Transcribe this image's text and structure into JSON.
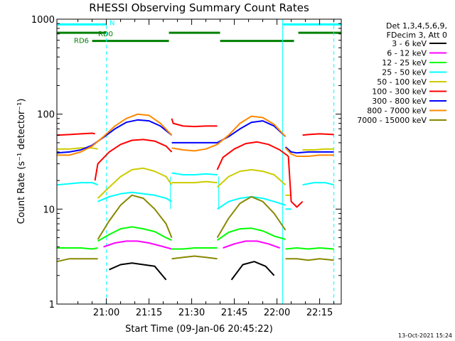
{
  "chart_data": {
    "type": "line",
    "title": "RHESSI Observing Summary Count Rates",
    "xlabel": "Start Time (09-Jan-06 20:45:22)",
    "ylabel": "Count Rate (s⁻¹ detector⁻¹)",
    "yscale": "log",
    "ylim": [
      1,
      1000
    ],
    "xlim_minutes": [
      -2.4,
      97.6
    ],
    "xtick_labels": [
      "21:00",
      "21:15",
      "21:30",
      "21:45",
      "22:00",
      "22:15"
    ],
    "xtick_minutes": [
      15,
      30,
      45,
      60,
      75,
      90
    ],
    "ytick_labels": [
      "1",
      "10",
      "100",
      "1000"
    ],
    "ytick_values": [
      1,
      10,
      100,
      1000
    ],
    "legend_header": [
      "Det 1,3,4,5,6,9,",
      "FDecim 3, Att 0"
    ],
    "legend_position": "right",
    "grid": false,
    "series": [
      {
        "name": "3 - 6 keV",
        "color": "#000000",
        "segments": [
          {
            "x": [
              16,
              20,
              24,
              28,
              32,
              36
            ],
            "y": [
              2.3,
              2.6,
              2.7,
              2.6,
              2.5,
              1.8
            ]
          },
          {
            "x": [
              59,
              63,
              67,
              71,
              74
            ],
            "y": [
              1.8,
              2.6,
              2.8,
              2.5,
              2.0
            ]
          }
        ]
      },
      {
        "name": "6 - 12 keV",
        "color": "#ff00ff",
        "segments": [
          {
            "x": [
              14,
              18,
              22,
              26,
              30,
              34,
              38
            ],
            "y": [
              4.0,
              4.4,
              4.6,
              4.6,
              4.4,
              4.1,
              3.8
            ]
          },
          {
            "x": [
              56,
              60,
              64,
              68,
              72,
              76
            ],
            "y": [
              3.9,
              4.3,
              4.6,
              4.6,
              4.3,
              3.9
            ]
          }
        ]
      },
      {
        "name": "12 - 25 keV",
        "color": "#00ff00",
        "segments": [
          {
            "x": [
              -2.4,
              2,
              6,
              10,
              12
            ],
            "y": [
              3.9,
              3.9,
              3.9,
              3.8,
              3.9
            ]
          },
          {
            "x": [
              12,
              16,
              20,
              24,
              28,
              32,
              36,
              38
            ],
            "y": [
              4.6,
              5.4,
              6.2,
              6.5,
              6.2,
              5.8,
              5.0,
              4.7
            ]
          },
          {
            "x": [
              38,
              42,
              46,
              50,
              54
            ],
            "y": [
              3.8,
              3.8,
              3.9,
              3.9,
              3.9
            ]
          },
          {
            "x": [
              54,
              58,
              62,
              66,
              70,
              74,
              78
            ],
            "y": [
              4.7,
              5.7,
              6.2,
              6.3,
              5.9,
              5.2,
              4.8
            ]
          },
          {
            "x": [
              78,
              82,
              86,
              90,
              95
            ],
            "y": [
              3.8,
              3.9,
              3.8,
              3.9,
              3.8
            ]
          }
        ]
      },
      {
        "name": "25 - 50 keV",
        "color": "#00ffff",
        "segments": [
          {
            "x": [
              -2.4,
              2,
              6,
              10,
              12
            ],
            "y": [
              18,
              18.5,
              19,
              19,
              18
            ]
          },
          {
            "x": [
              12,
              16,
              20,
              24,
              28,
              32,
              36,
              38
            ],
            "y": [
              12,
              13.5,
              14.5,
              15,
              14.5,
              14,
              13,
              12
            ]
          },
          {
            "x": [
              38,
              42,
              46,
              50,
              54
            ],
            "y": [
              24,
              23,
              23,
              23.5,
              23
            ]
          },
          {
            "x": [
              54,
              58,
              62,
              66,
              70,
              74,
              78
            ],
            "y": [
              10,
              12,
              13,
              13.5,
              13,
              12,
              11
            ]
          },
          {
            "x": [
              78,
              80
            ],
            "y": [
              10,
              10
            ]
          },
          {
            "x": [
              84,
              88,
              92,
              95
            ],
            "y": [
              18,
              19,
              19,
              18
            ]
          }
        ]
      },
      {
        "name": "50 - 100 keV",
        "color": "#cccc00",
        "segments": [
          {
            "x": [
              -2.4,
              2,
              6,
              10,
              12
            ],
            "y": [
              43,
              43,
              44,
              44,
              43
            ]
          },
          {
            "x": [
              12,
              16,
              20,
              24,
              28,
              32,
              36,
              38
            ],
            "y": [
              13,
              17,
              22,
              26,
              27,
              25,
              22,
              18
            ]
          },
          {
            "x": [
              38,
              42,
              46,
              50,
              54
            ],
            "y": [
              19,
              19,
              19,
              19.5,
              19
            ]
          },
          {
            "x": [
              54,
              58,
              62,
              66,
              70,
              74,
              78
            ],
            "y": [
              17,
              22,
              25,
              26,
              25,
              23,
              18
            ]
          },
          {
            "x": [
              78,
              80
            ],
            "y": [
              14,
              14
            ]
          },
          {
            "x": [
              84,
              88,
              92,
              95
            ],
            "y": [
              42,
              42,
              43,
              43
            ]
          }
        ]
      },
      {
        "name": "100 - 300 keV",
        "color": "#ff0000",
        "segments": [
          {
            "x": [
              -2.4,
              2,
              6,
              10,
              11
            ],
            "y": [
              60,
              61,
              62,
              63,
              62
            ]
          },
          {
            "x": [
              11,
              12,
              16,
              20,
              24,
              28,
              32,
              36,
              38
            ],
            "y": [
              20,
              30,
              40,
              48,
              53,
              54,
              52,
              46,
              40
            ]
          },
          {
            "x": [
              38,
              38.5,
              42,
              46,
              50,
              54
            ],
            "y": [
              90,
              80,
              75,
              74,
              75,
              75
            ]
          },
          {
            "x": [
              54,
              56,
              60,
              64,
              68,
              72,
              76,
              79
            ],
            "y": [
              26,
              35,
              43,
              49,
              51,
              48,
              42,
              36
            ]
          },
          {
            "x": [
              79,
              80,
              82,
              84
            ],
            "y": [
              36,
              12,
              10.5,
              12
            ]
          },
          {
            "x": [
              84,
              86,
              90,
              95
            ],
            "y": [
              60,
              61,
              62,
              61
            ]
          }
        ]
      },
      {
        "name": "300 - 800 keV",
        "color": "#0000ff",
        "segments": [
          {
            "x": [
              -2.4,
              2,
              6,
              10,
              14,
              18,
              22,
              26,
              30,
              34,
              38
            ],
            "y": [
              39,
              40,
              42,
              47,
              57,
              70,
              82,
              87,
              85,
              75,
              60
            ]
          },
          {
            "x": [
              38,
              42,
              46,
              50,
              54,
              58,
              62,
              66,
              70,
              74,
              78
            ],
            "y": [
              50,
              50,
              50,
              50,
              50,
              58,
              70,
              82,
              85,
              75,
              58
            ]
          },
          {
            "x": [
              78,
              80,
              82,
              86,
              90,
              95
            ],
            "y": [
              45,
              40,
              39,
              40,
              40,
              40
            ]
          }
        ]
      },
      {
        "name": "800 - 7000 keV",
        "color": "#ff8800",
        "segments": [
          {
            "x": [
              -2.4,
              2,
              6,
              10,
              14,
              18,
              22,
              26,
              30,
              34,
              38
            ],
            "y": [
              37,
              37,
              40,
              46,
              58,
              75,
              90,
              100,
              97,
              80,
              60
            ]
          },
          {
            "x": [
              38,
              42,
              46,
              50,
              54,
              58,
              62,
              66,
              70,
              74,
              78
            ],
            "y": [
              44,
              42,
              41,
              43,
              48,
              60,
              80,
              95,
              92,
              78,
              58
            ]
          },
          {
            "x": [
              78,
              80,
              82,
              86,
              90,
              95
            ],
            "y": [
              44,
              38,
              36,
              36,
              37,
              37
            ]
          }
        ]
      },
      {
        "name": "7000 - 15000 keV",
        "color": "#888800",
        "segments": [
          {
            "x": [
              -2.4,
              2,
              6,
              10,
              12
            ],
            "y": [
              2.8,
              3.0,
              3.0,
              3.0,
              3.0
            ]
          },
          {
            "x": [
              12,
              16,
              20,
              24,
              28,
              32,
              36,
              38
            ],
            "y": [
              4.8,
              7.5,
              11,
              14,
              13,
              10,
              7,
              5
            ]
          },
          {
            "x": [
              38,
              42,
              46,
              50,
              54
            ],
            "y": [
              3.0,
              3.1,
              3.2,
              3.1,
              3.0
            ]
          },
          {
            "x": [
              54,
              58,
              62,
              66,
              70,
              74,
              78
            ],
            "y": [
              5,
              8,
              11.5,
              13.5,
              12,
              9,
              6
            ]
          },
          {
            "x": [
              78,
              82,
              86,
              90,
              95
            ],
            "y": [
              3.0,
              3.0,
              2.9,
              3.0,
              2.9
            ]
          }
        ]
      }
    ],
    "flags": [
      {
        "label": "N",
        "color": "#00ffff",
        "y": 880,
        "segments": [
          [
            -2.4,
            15
          ],
          [
            77,
            97.6
          ]
        ]
      },
      {
        "label": "RD0",
        "color": "#008000",
        "y": 720,
        "segments": [
          [
            -2.4,
            15
          ],
          [
            37,
            55
          ],
          [
            82.5,
            97.6
          ]
        ]
      },
      {
        "label": "RD6",
        "color": "#008000",
        "y": 590,
        "segments": [
          [
            10,
            37
          ],
          [
            55,
            81
          ]
        ]
      }
    ],
    "night_boundaries": [
      {
        "minute": -2.4,
        "style": "solid"
      },
      {
        "minute": 15,
        "style": "dashed"
      },
      {
        "minute": 77,
        "style": "solid"
      },
      {
        "minute": 95,
        "style": "dashed"
      }
    ],
    "vertical_markers": [
      {
        "minute": 37.5,
        "color": "#00ffff"
      },
      {
        "minute": 54.5,
        "color": "#00ffff"
      }
    ]
  },
  "footer": {
    "timestamp": "13-Oct-2021 15:24"
  }
}
